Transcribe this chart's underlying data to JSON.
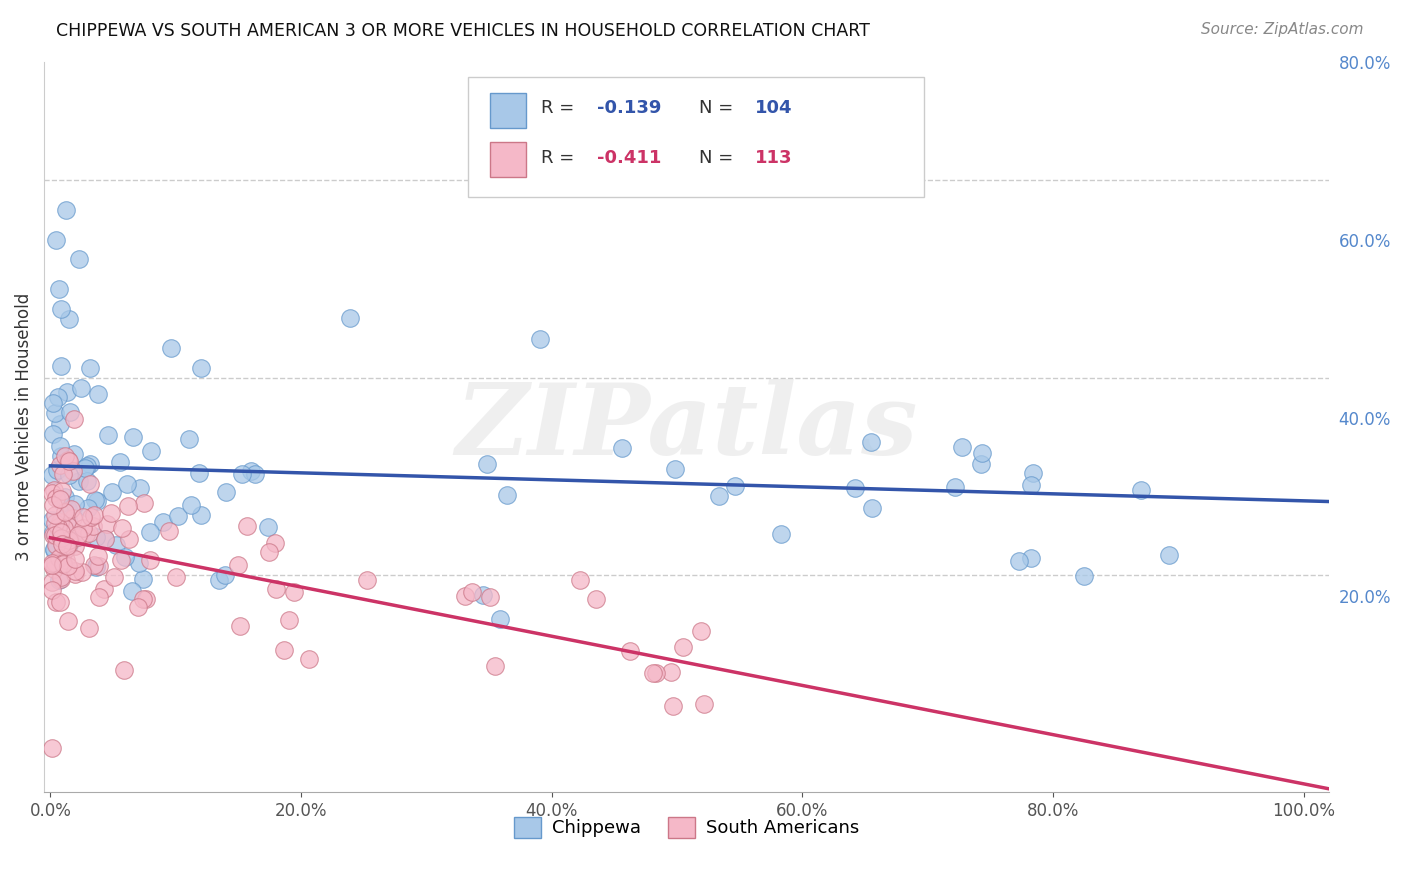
{
  "title": "CHIPPEWA VS SOUTH AMERICAN 3 OR MORE VEHICLES IN HOUSEHOLD CORRELATION CHART",
  "source": "Source: ZipAtlas.com",
  "ylabel": "3 or more Vehicles in Household",
  "right_ytick_vals": [
    0.2,
    0.4,
    0.6,
    0.8
  ],
  "right_ytick_labels": [
    "20.0%",
    "40.0%",
    "60.0%",
    "80.0%"
  ],
  "xtick_vals": [
    0.0,
    0.2,
    0.4,
    0.6,
    0.8,
    1.0
  ],
  "xtick_labels": [
    "0.0%",
    "20.0%",
    "40.0%",
    "60.0%",
    "80.0%",
    "100.0%"
  ],
  "chippewa_R": -0.139,
  "chippewa_N": 104,
  "south_american_R": -0.411,
  "south_american_N": 113,
  "chippewa_color": "#a8c8e8",
  "chippewa_edge_color": "#6699cc",
  "chippewa_line_color": "#3355aa",
  "south_american_color": "#f5b8c8",
  "south_american_edge_color": "#cc7788",
  "south_american_line_color": "#cc3366",
  "background_color": "#ffffff",
  "watermark": "ZIPatlas",
  "ylim_low": -0.02,
  "ylim_high": 0.72,
  "xlim_low": -0.005,
  "xlim_high": 1.02,
  "legend_R_color": "#3355aa",
  "legend_SA_color": "#cc3366",
  "legend_text_color": "#333333"
}
